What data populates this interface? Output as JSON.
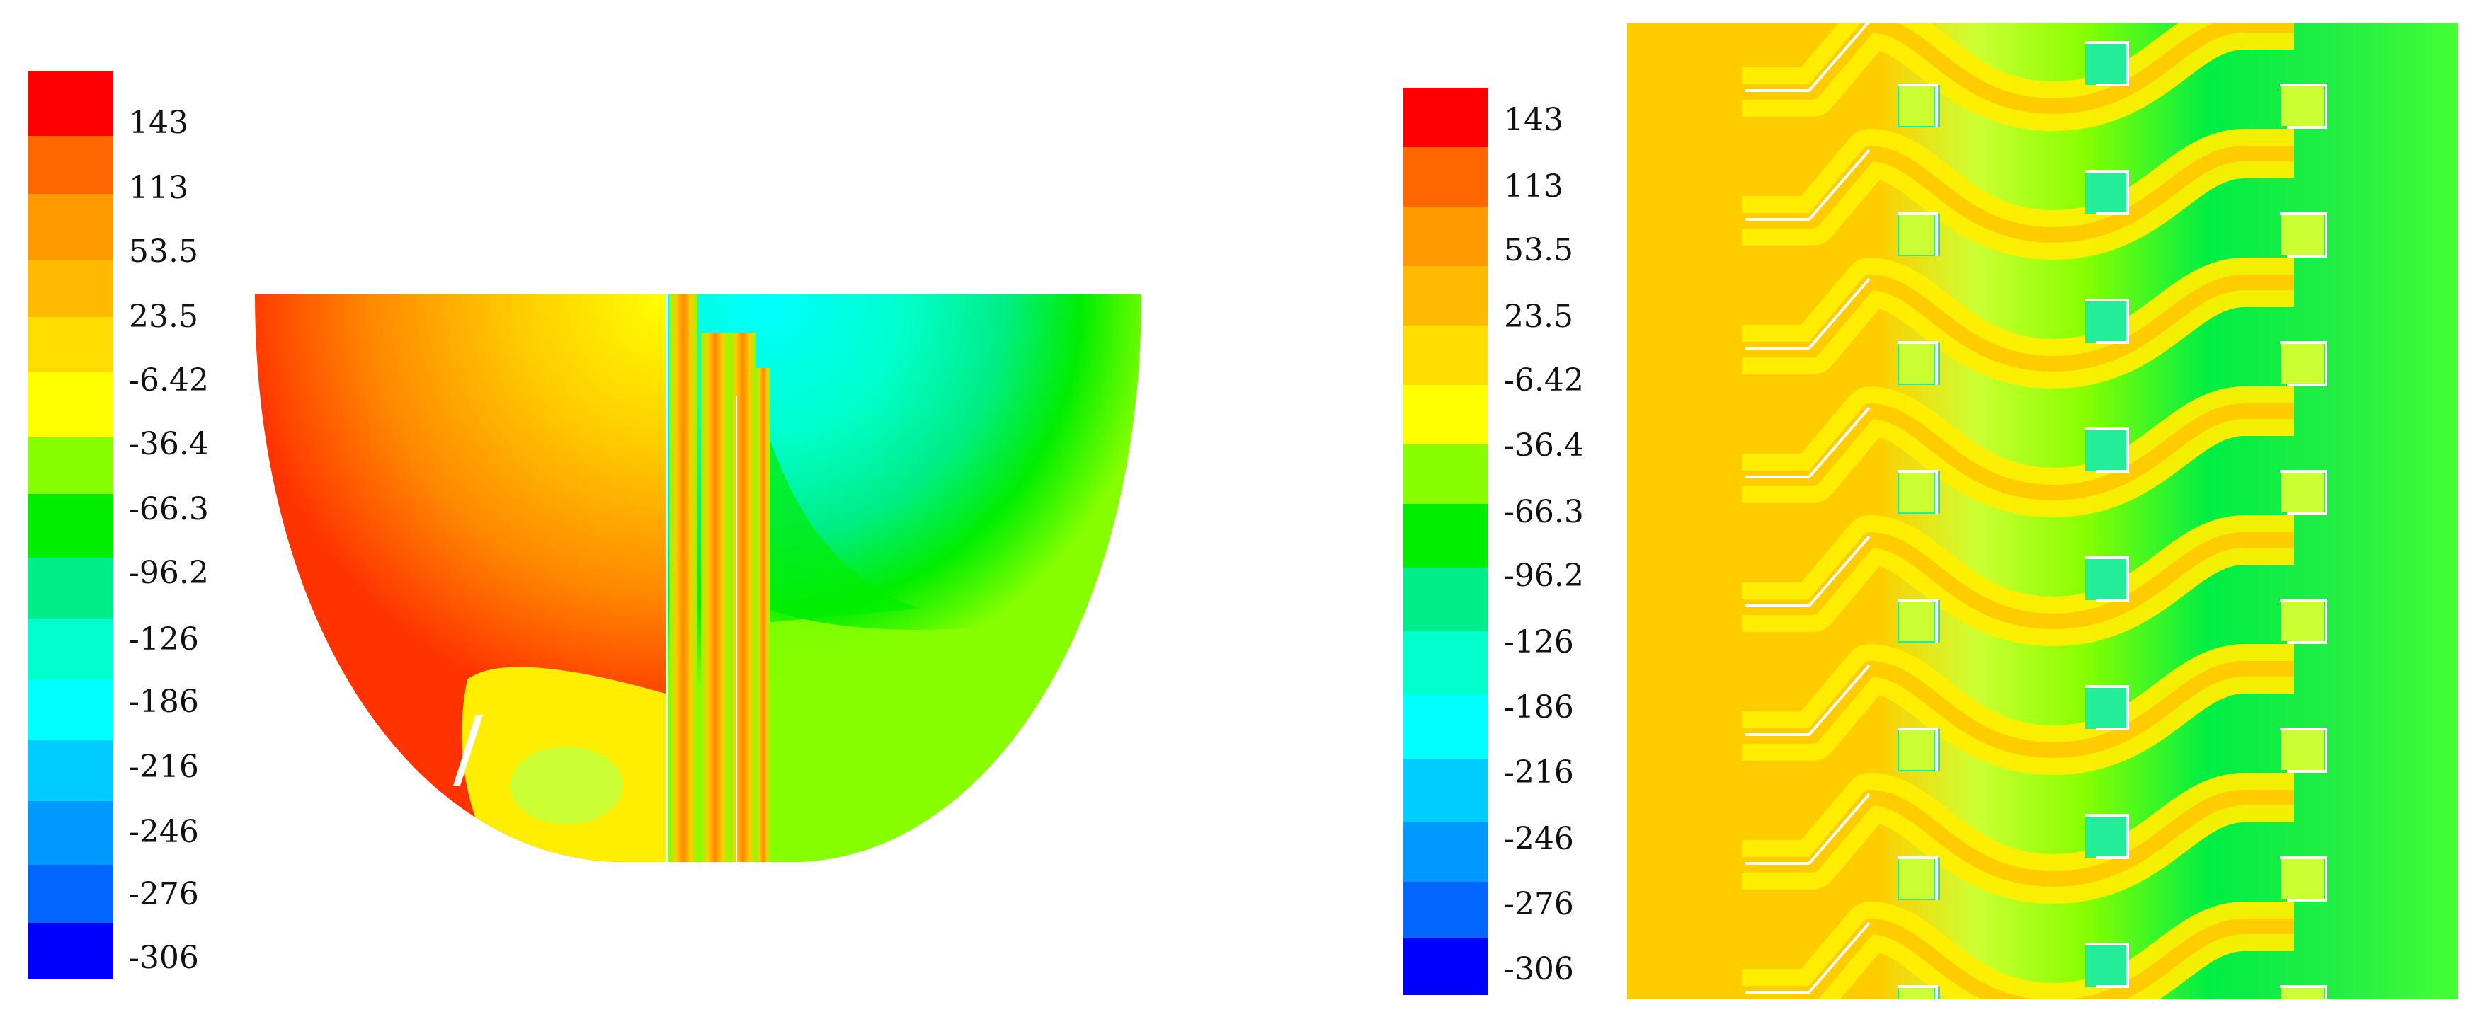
{
  "legend_left": {
    "labels": [
      "143",
      "113",
      "53.5",
      "23.5",
      "-6.42",
      "-36.4",
      "-66.3",
      "-96.2",
      "-126",
      "-186",
      "-216",
      "-246",
      "-276",
      "-306"
    ]
  },
  "legend_right": {
    "labels": [
      "143",
      "113",
      "53.5",
      "23.5",
      "-6.42",
      "-36.4",
      "-66.3",
      "-96.2",
      "-126",
      "-186",
      "-216",
      "-246",
      "-276",
      "-306"
    ]
  },
  "colors": {
    "bands": [
      "#ff0000",
      "#ff6600",
      "#ff9900",
      "#ffbb00",
      "#ffdd00",
      "#ffff00",
      "#88ff00",
      "#00ee00",
      "#00ee88",
      "#00ffcc",
      "#00ffff",
      "#00ccff",
      "#0099ff",
      "#0066ff",
      "#0000ff"
    ]
  }
}
